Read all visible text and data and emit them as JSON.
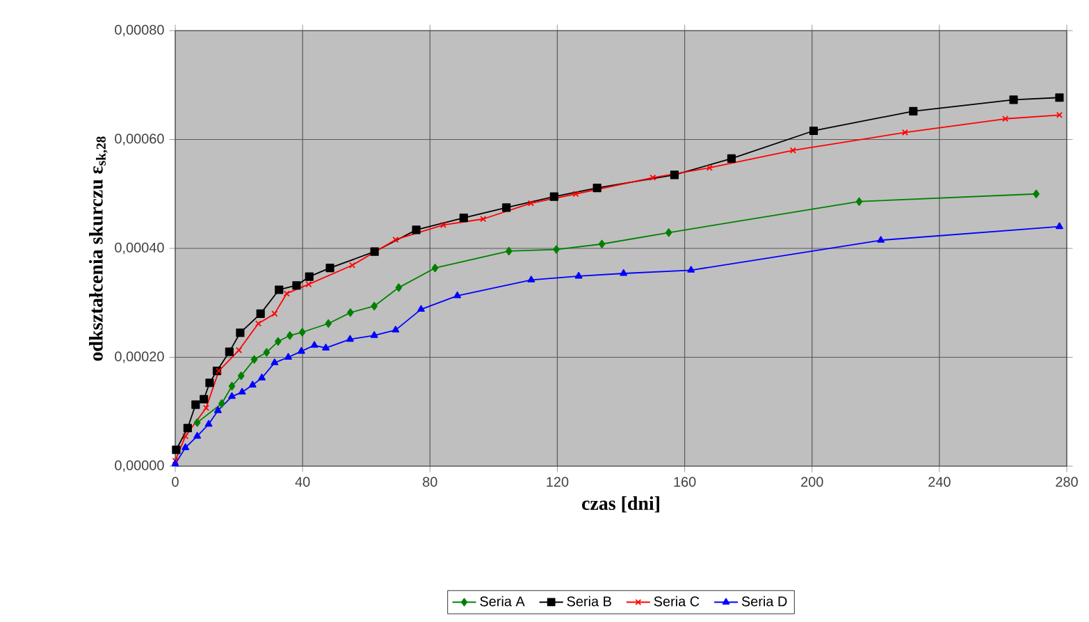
{
  "chart_data": {
    "type": "line",
    "xlabel": "czas [dni]",
    "ylabel": "odkształcenia skurczu ε$_{sk,28}$",
    "xlim": [
      0,
      280
    ],
    "xticks": [
      0,
      40,
      80,
      120,
      160,
      200,
      240,
      280
    ],
    "ylim": [
      0,
      0.0008
    ],
    "yticks": [
      {
        "value": 0,
        "label": "0,00000"
      },
      {
        "value": 0.0002,
        "label": "0,00020"
      },
      {
        "value": 0.0004,
        "label": "0,00040"
      },
      {
        "value": 0.0006,
        "label": "0,00060"
      },
      {
        "value": 0.0008,
        "label": "0,00080"
      }
    ],
    "grid": true,
    "legend": "bottom",
    "line_style": "solid",
    "series": [
      {
        "name": "Seria A",
        "color": "#008000",
        "marker": "diamond",
        "x": [
          6.9,
          14.6,
          17.8,
          20.7,
          24.8,
          28.7,
          32.3,
          36,
          39.9,
          48.1,
          55,
          62.5,
          70.2,
          81.6,
          104.8,
          119.7,
          134,
          155,
          214.8,
          270.4
        ],
        "values": [
          8e-05,
          0.000115,
          0.000147,
          0.000166,
          0.000196,
          0.000209,
          0.000229,
          0.00024,
          0.000246,
          0.000262,
          0.000282,
          0.000294,
          0.000328,
          0.000364,
          0.000395,
          0.000398,
          0.000408,
          0.000429,
          0.000486,
          0.0005
        ]
      },
      {
        "name": "Seria B",
        "color": "#000000",
        "marker": "square",
        "x": [
          0.3,
          3.9,
          6.4,
          9,
          10.8,
          13.1,
          17,
          20.4,
          26.8,
          32.6,
          38.1,
          42.1,
          48.6,
          62.6,
          75.7,
          90.6,
          104,
          119,
          132.5,
          156.8,
          174.7,
          200.5,
          231.8,
          263.3,
          277.7
        ],
        "values": [
          3e-05,
          7e-05,
          0.000113,
          0.000123,
          0.000153,
          0.000175,
          0.00021,
          0.000245,
          0.00028,
          0.000324,
          0.000332,
          0.000348,
          0.000364,
          0.000394,
          0.000434,
          0.000456,
          0.000475,
          0.000495,
          0.000511,
          0.000535,
          0.000565,
          0.000616,
          0.000652,
          0.000673,
          0.000677
        ]
      },
      {
        "name": "Seria C",
        "color": "#ff0000",
        "marker": "cross",
        "x": [
          0,
          3.2,
          9.7,
          13.7,
          20,
          26.1,
          31.2,
          35,
          41.9,
          55.6,
          69.2,
          84.2,
          96.7,
          111.7,
          125.8,
          150,
          167.8,
          194,
          229.2,
          260.7,
          277.7
        ],
        "values": [
          1e-05,
          5.5e-05,
          0.000107,
          0.000175,
          0.000213,
          0.000262,
          0.00028,
          0.000317,
          0.000334,
          0.000369,
          0.000416,
          0.000443,
          0.000454,
          0.000483,
          0.0005,
          0.00053,
          0.000548,
          0.00058,
          0.000613,
          0.000638,
          0.000645
        ]
      },
      {
        "name": "Seria D",
        "color": "#0000ff",
        "marker": "triangle",
        "x": [
          0,
          3.2,
          6.9,
          10.5,
          13.4,
          17.8,
          21,
          24.3,
          27.2,
          31.2,
          35.5,
          39.6,
          43.7,
          47.3,
          54.9,
          62.5,
          69.2,
          77.2,
          88.6,
          111.8,
          126.7,
          140.8,
          162,
          221.6,
          277.7
        ],
        "values": [
          4e-06,
          3.4e-05,
          5.5e-05,
          7.7e-05,
          0.000102,
          0.000128,
          0.000136,
          0.000149,
          0.000162,
          0.00019,
          0.0002,
          0.000211,
          0.000222,
          0.000217,
          0.000233,
          0.00024,
          0.00025,
          0.000288,
          0.000313,
          0.000342,
          0.000349,
          0.000354,
          0.00036,
          0.000415,
          0.00044
        ]
      }
    ]
  }
}
